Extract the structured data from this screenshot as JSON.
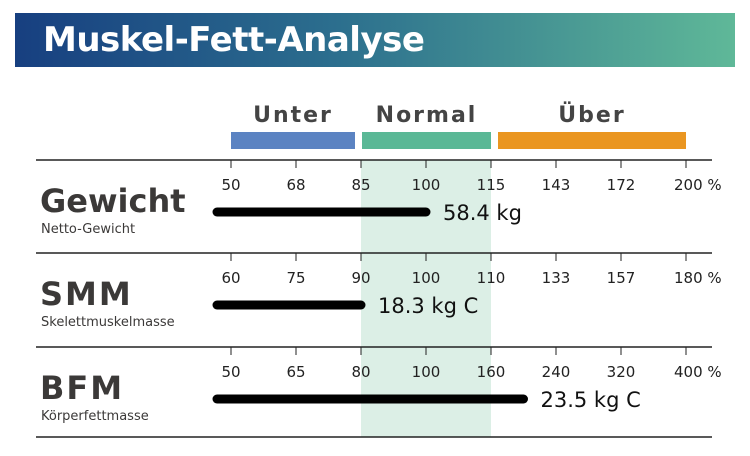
{
  "header": {
    "title": "Muskel-Fett-Analyse"
  },
  "chart_data": {
    "type": "bar",
    "bands": [
      {
        "label": "Unter",
        "color": "#5b83c2"
      },
      {
        "label": "Normal",
        "color": "#5ab896"
      },
      {
        "label": "Über",
        "color": "#ea9621"
      }
    ],
    "normal_shade_color": "#dcefe6",
    "bar_color": "#000000",
    "rows": [
      {
        "name": "Gewicht",
        "subtitle": "Netto-Gewicht",
        "ticks": [
          "50",
          "68",
          "85",
          "100",
          "115",
          "143",
          "172",
          "200 %"
        ],
        "value": 100,
        "value_label": "58.4 kg"
      },
      {
        "name": "SMM",
        "subtitle": "Skelettmuskelmasse",
        "ticks": [
          "60",
          "75",
          "90",
          "100",
          "110",
          "133",
          "157",
          "180 %"
        ],
        "value": 90,
        "value_label": "18.3 kg C"
      },
      {
        "name": "BFM",
        "subtitle": "Körperfettmasse",
        "ticks": [
          "50",
          "65",
          "80",
          "100",
          "160",
          "240",
          "320",
          "400 %"
        ],
        "value": 200,
        "value_label": "23.5 kg C"
      }
    ]
  }
}
